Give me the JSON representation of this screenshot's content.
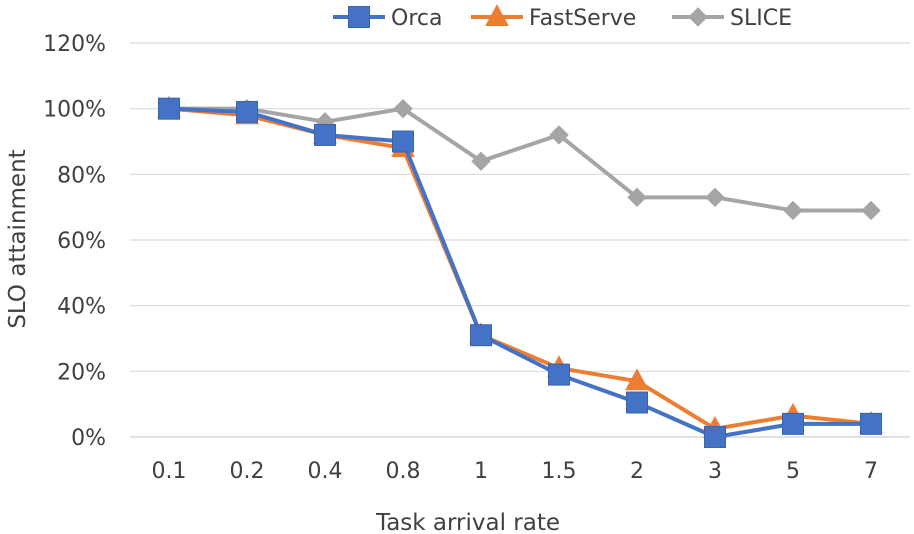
{
  "chart_data": {
    "type": "line",
    "title": "",
    "xlabel": "Task arrival rate",
    "ylabel": "SLO attainment",
    "categories": [
      "0.1",
      "0.2",
      "0.4",
      "0.8",
      "1",
      "1.5",
      "2",
      "3",
      "5",
      "7"
    ],
    "ylim": [
      0,
      120
    ],
    "yticks": [
      0,
      20,
      40,
      60,
      80,
      100,
      120
    ],
    "ytick_labels": [
      "0%",
      "20%",
      "40%",
      "60%",
      "80%",
      "100%",
      "120%"
    ],
    "grid": true,
    "legend_position": "top",
    "series": [
      {
        "name": "Orca",
        "color": "#4472C4",
        "marker": "square",
        "values": [
          100,
          99,
          92,
          90,
          31,
          19,
          10.5,
          0,
          4,
          4
        ]
      },
      {
        "name": "FastServe",
        "color": "#ED7D31",
        "marker": "triangle",
        "values": [
          100,
          98,
          92,
          88,
          31,
          21,
          17,
          2.5,
          6.5,
          4
        ]
      },
      {
        "name": "SLICE",
        "color": "#A5A5A5",
        "marker": "diamond",
        "values": [
          100,
          100,
          96,
          100,
          84,
          92,
          73,
          73,
          69,
          69
        ]
      }
    ]
  }
}
